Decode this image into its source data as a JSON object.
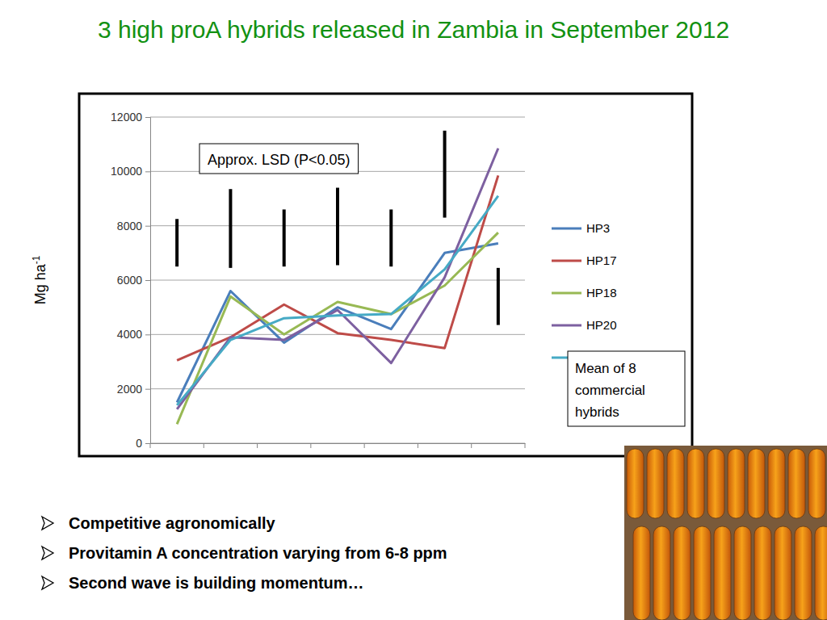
{
  "chart_data": {
    "type": "line",
    "title": "3 high proA hybrids released in Zambia in September 2012",
    "y_label": "Mg ha-1",
    "categories": [
      null,
      null,
      null,
      null,
      null,
      null,
      null
    ],
    "series": [
      {
        "name": "HP3",
        "color": "#4a7ebb",
        "values": [
          1500,
          5600,
          3700,
          5000,
          4200,
          7000,
          7350
        ]
      },
      {
        "name": "HP17",
        "color": "#be4b48",
        "values": [
          3050,
          3900,
          5100,
          4050,
          3800,
          3500,
          9850
        ]
      },
      {
        "name": "HP18",
        "color": "#98b954",
        "values": [
          700,
          5400,
          4000,
          5200,
          4750,
          5800,
          7750
        ]
      },
      {
        "name": "HP20",
        "color": "#7d60a0",
        "values": [
          1250,
          3900,
          3800,
          4900,
          2950,
          6100,
          10850
        ]
      },
      {
        "name": "Mean of 8 commercial hybrids",
        "color": "#46aac5",
        "values": [
          1400,
          3800,
          4600,
          4700,
          4750,
          6400,
          9100
        ]
      }
    ],
    "ylim": [
      0,
      12000
    ],
    "yticks": [
      0,
      2000,
      4000,
      6000,
      8000,
      10000,
      12000
    ],
    "grid": true,
    "legend": "right",
    "annotation": "Approx. LSD (P<0.05)",
    "lsd": [
      {
        "low": 6500,
        "high": 8250
      },
      {
        "low": 6450,
        "high": 9350
      },
      {
        "low": 6500,
        "high": 8600
      },
      {
        "low": 6550,
        "high": 9400
      },
      {
        "low": 6500,
        "high": 8600
      },
      {
        "low": 8300,
        "high": 11500
      },
      {
        "low": 4350,
        "high": 6450
      }
    ]
  },
  "bullets": [
    "Competitive agronomically",
    "Provitamin A concentration varying from 6-8 ppm",
    "Second wave is building momentum…"
  ]
}
